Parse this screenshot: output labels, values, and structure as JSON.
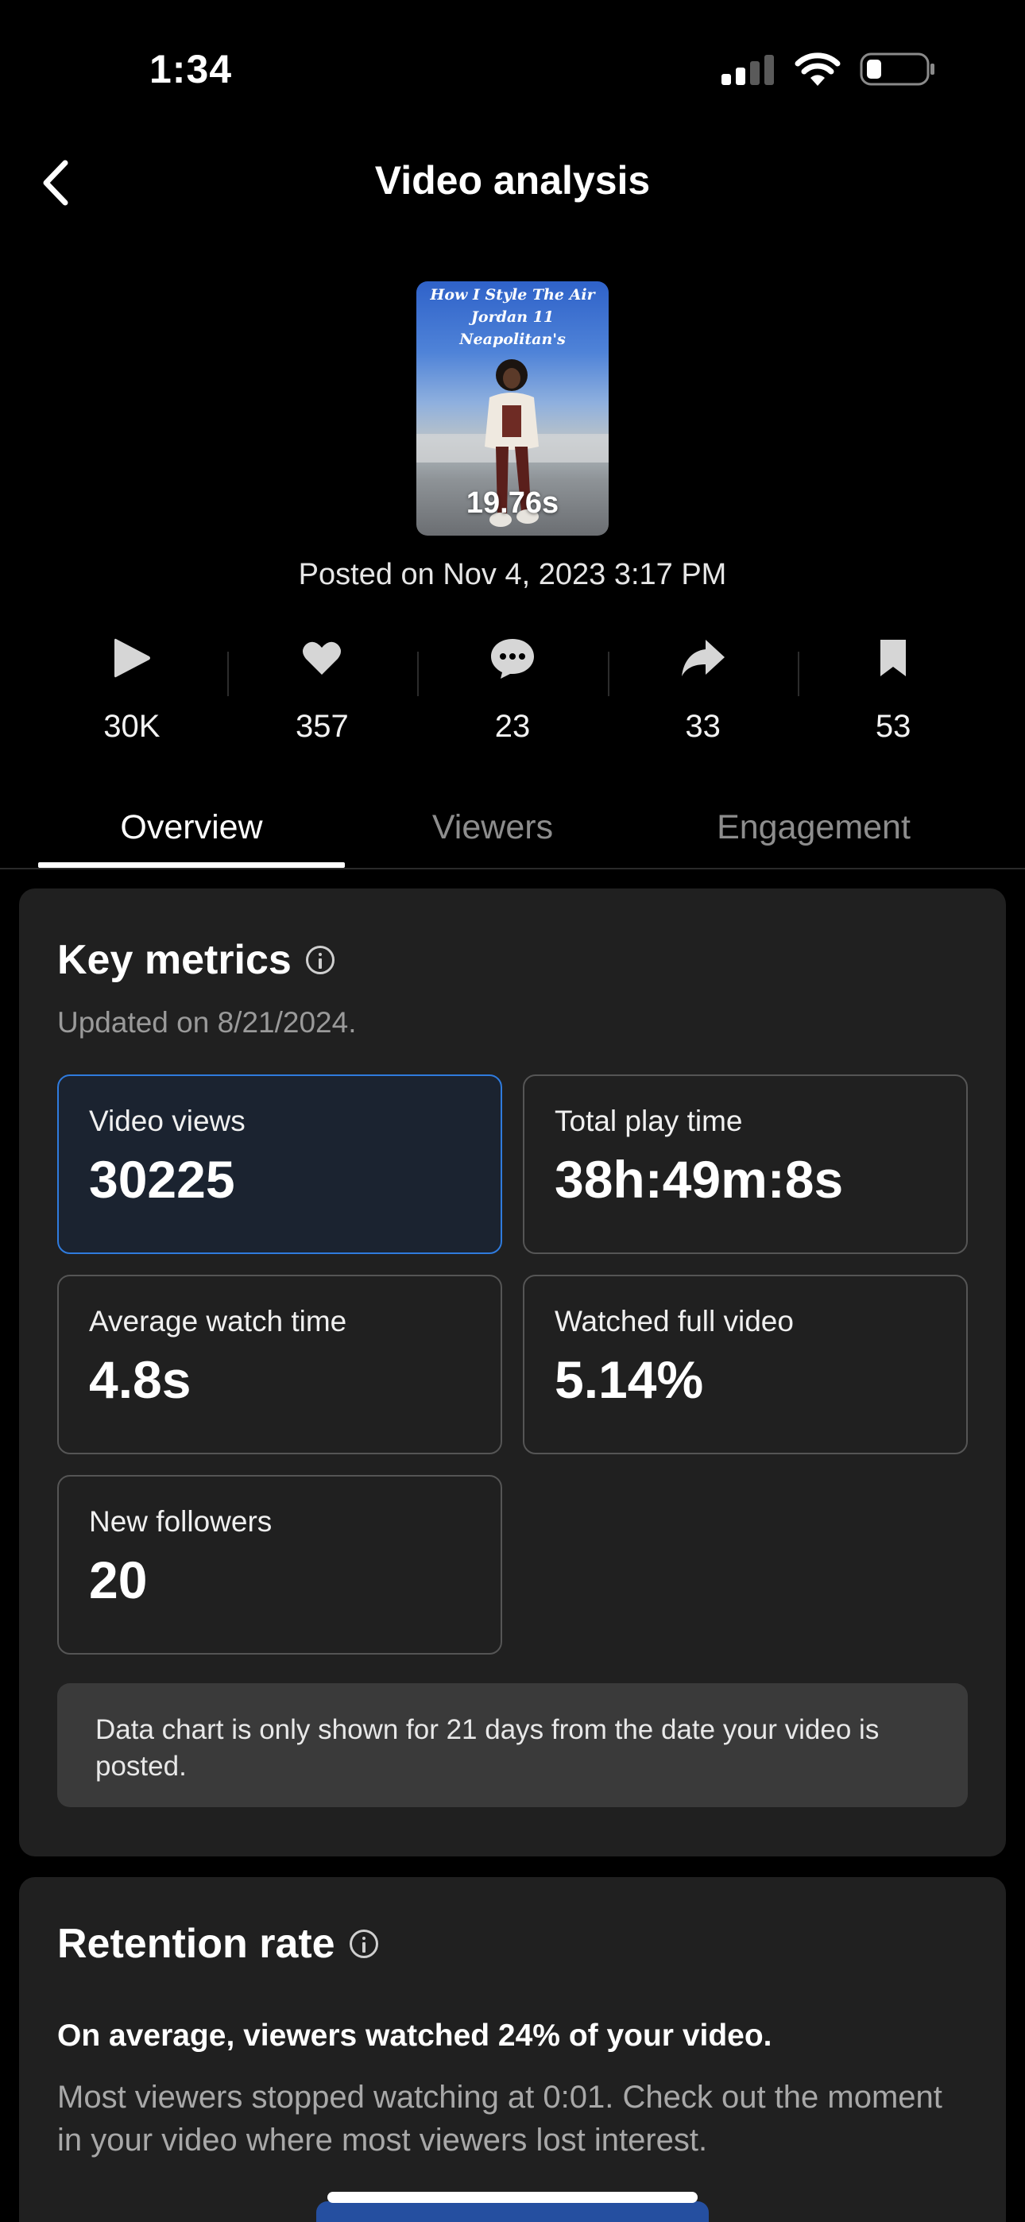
{
  "status_bar": {
    "time": "1:34"
  },
  "header": {
    "title": "Video analysis"
  },
  "video": {
    "thumbnail_caption": "How I Style The Air Jordan 11 Neapolitan's",
    "duration": "19.76s",
    "posted": "Posted on Nov 4, 2023 3:17 PM"
  },
  "stats": [
    {
      "icon": "play-icon",
      "value": "30K"
    },
    {
      "icon": "heart-icon",
      "value": "357"
    },
    {
      "icon": "comment-icon",
      "value": "23"
    },
    {
      "icon": "share-icon",
      "value": "33"
    },
    {
      "icon": "bookmark-icon",
      "value": "53"
    }
  ],
  "tabs": [
    {
      "label": "Overview",
      "active": true
    },
    {
      "label": "Viewers",
      "active": false
    },
    {
      "label": "Engagement",
      "active": false
    }
  ],
  "key_metrics": {
    "title": "Key metrics",
    "updated": "Updated on 8/21/2024.",
    "metrics": [
      {
        "label": "Video views",
        "value": "30225",
        "selected": true
      },
      {
        "label": "Total play time",
        "value": "38h:49m:8s",
        "selected": false
      },
      {
        "label": "Average watch time",
        "value": "4.8s",
        "selected": false
      },
      {
        "label": "Watched full video",
        "value": "5.14%",
        "selected": false
      },
      {
        "label": "New followers",
        "value": "20",
        "selected": false
      }
    ],
    "note": "Data chart is only shown for 21 days from the date your video is posted."
  },
  "retention": {
    "title": "Retention rate",
    "lead": "On average, viewers watched 24% of your video.",
    "description": "Most viewers stopped watching at 0:01. Check out the moment in your video where most viewers lost interest."
  },
  "colors": {
    "background": "#000000",
    "card": "#202020",
    "accent_blue": "#2f7bdd"
  }
}
